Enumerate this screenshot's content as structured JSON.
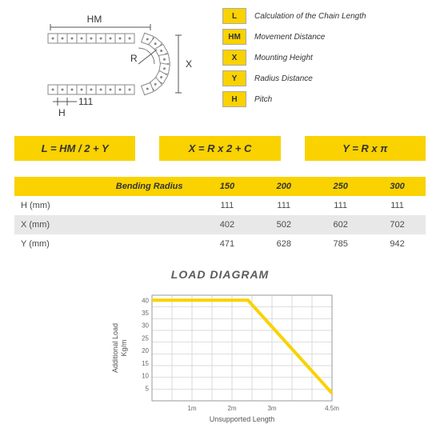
{
  "legend": [
    {
      "badge": "L",
      "text": "Calculation of the Chain Length"
    },
    {
      "badge": "HM",
      "text": "Movement Distance"
    },
    {
      "badge": "X",
      "text": "Mounting Height"
    },
    {
      "badge": "Y",
      "text": "Radius Distance"
    },
    {
      "badge": "H",
      "text": "Pitch"
    }
  ],
  "diagram": {
    "label_HM": "HM",
    "label_R": "R",
    "label_X": "X",
    "label_H": "H",
    "label_111": "111"
  },
  "formulas": {
    "f1": "L = HM / 2 + Y",
    "f2": "X = R x 2 + C",
    "f3": "Y = R x π"
  },
  "table": {
    "header_label": "Bending Radius",
    "cols": [
      "150",
      "200",
      "250",
      "300"
    ],
    "rows": [
      {
        "label": "H (mm)",
        "vals": [
          "111",
          "111",
          "111",
          "111"
        ]
      },
      {
        "label": "X (mm)",
        "vals": [
          "402",
          "502",
          "602",
          "702"
        ]
      },
      {
        "label": "Y (mm)",
        "vals": [
          "471",
          "628",
          "785",
          "942"
        ]
      }
    ]
  },
  "chart": {
    "title": "LOAD DIAGRAM",
    "ylabel": "Additional Load\nKg/m",
    "xlabel": "Unsupported Length",
    "yticks": [
      "5",
      "10",
      "15",
      "20",
      "25",
      "30",
      "35",
      "40"
    ],
    "xticks": [
      "1m",
      "2m",
      "3m",
      "4.5m"
    ],
    "ylim": [
      0,
      42
    ],
    "series": {
      "color": "#f9d200",
      "stroke_width": 4,
      "points": [
        [
          0,
          40
        ],
        [
          2.4,
          40
        ],
        [
          4.5,
          3
        ]
      ]
    },
    "grid_color": "#cccccc",
    "bg": "#ffffff",
    "axis_fontsize": 8
  }
}
